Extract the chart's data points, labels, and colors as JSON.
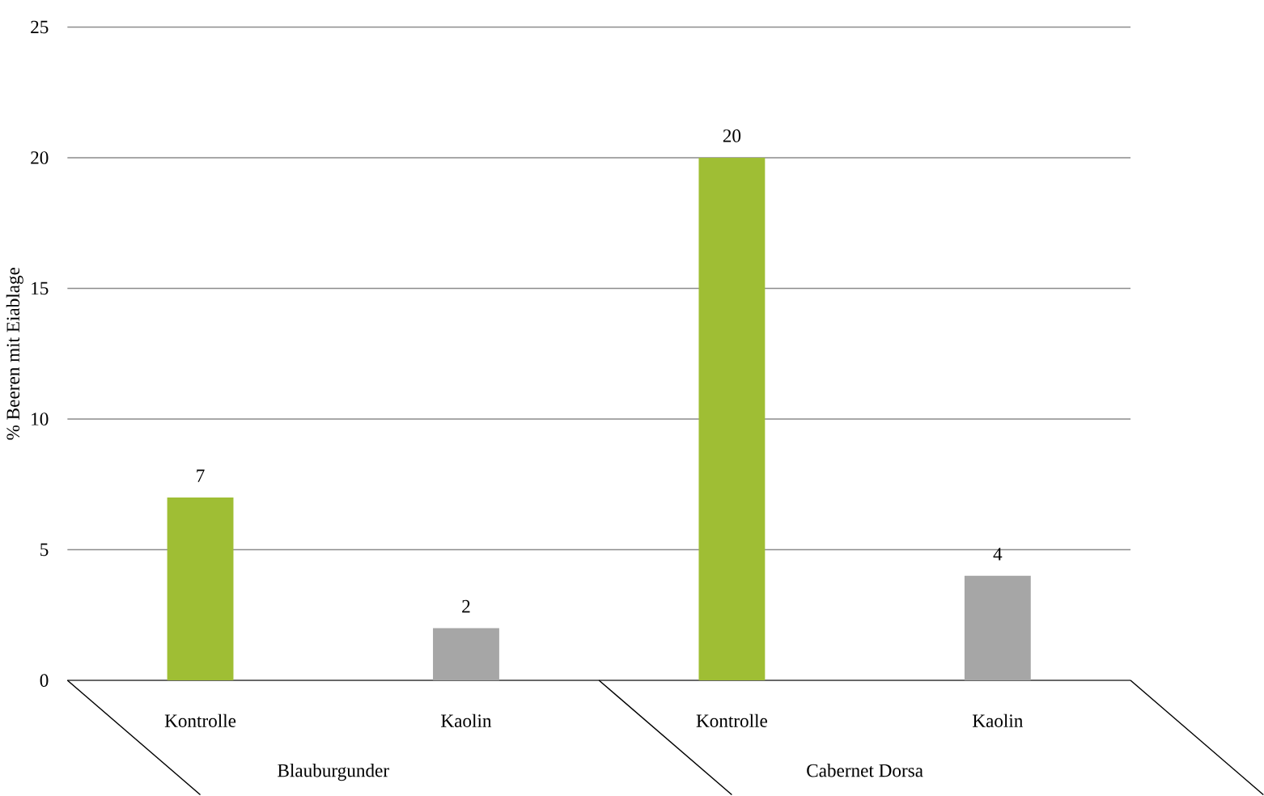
{
  "chart_data": {
    "type": "bar",
    "ylabel": "% Beeren mit Eiablage",
    "categories": [
      "Kontrolle",
      "Kaolin",
      "Kontrolle",
      "Kaolin"
    ],
    "values": [
      7,
      2,
      20,
      4
    ],
    "colors": [
      "#9fbe34",
      "#a6a6a6",
      "#9fbe34",
      "#a6a6a6"
    ],
    "ylim": [
      0,
      25
    ],
    "yticks": [
      0,
      5,
      10,
      15,
      20,
      25
    ],
    "grid": "y",
    "data_labels": true,
    "annotations": [
      "Blauburgunder",
      "Cabernet Dorsa"
    ]
  }
}
